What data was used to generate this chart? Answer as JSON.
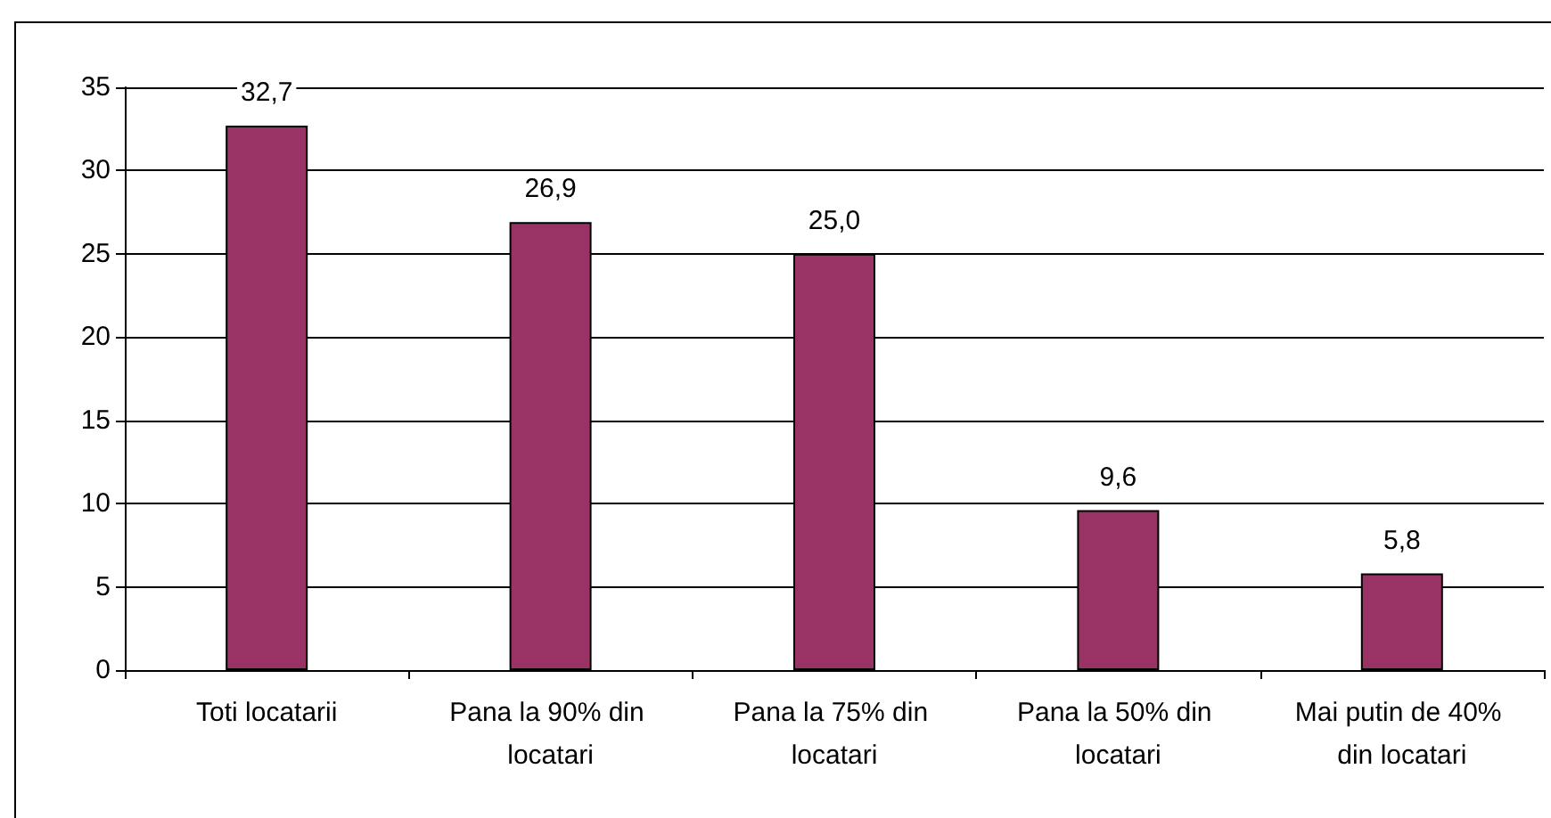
{
  "chart_data": {
    "type": "bar",
    "categories": [
      "Toti locatarii",
      "Pana la 90% din locatari",
      "Pana la 75% din locatari",
      "Pana la 50% din locatari",
      "Mai putin de 40% din locatari"
    ],
    "values": [
      32.7,
      26.9,
      25.0,
      9.6,
      5.8
    ],
    "value_labels": [
      "32,7",
      "26,9",
      "25,0",
      "9,6",
      "5,8"
    ],
    "color": "#993366",
    "ylim": [
      0,
      35
    ],
    "yticks": [
      0,
      5,
      10,
      15,
      20,
      25,
      30,
      35
    ],
    "grid": "y"
  }
}
